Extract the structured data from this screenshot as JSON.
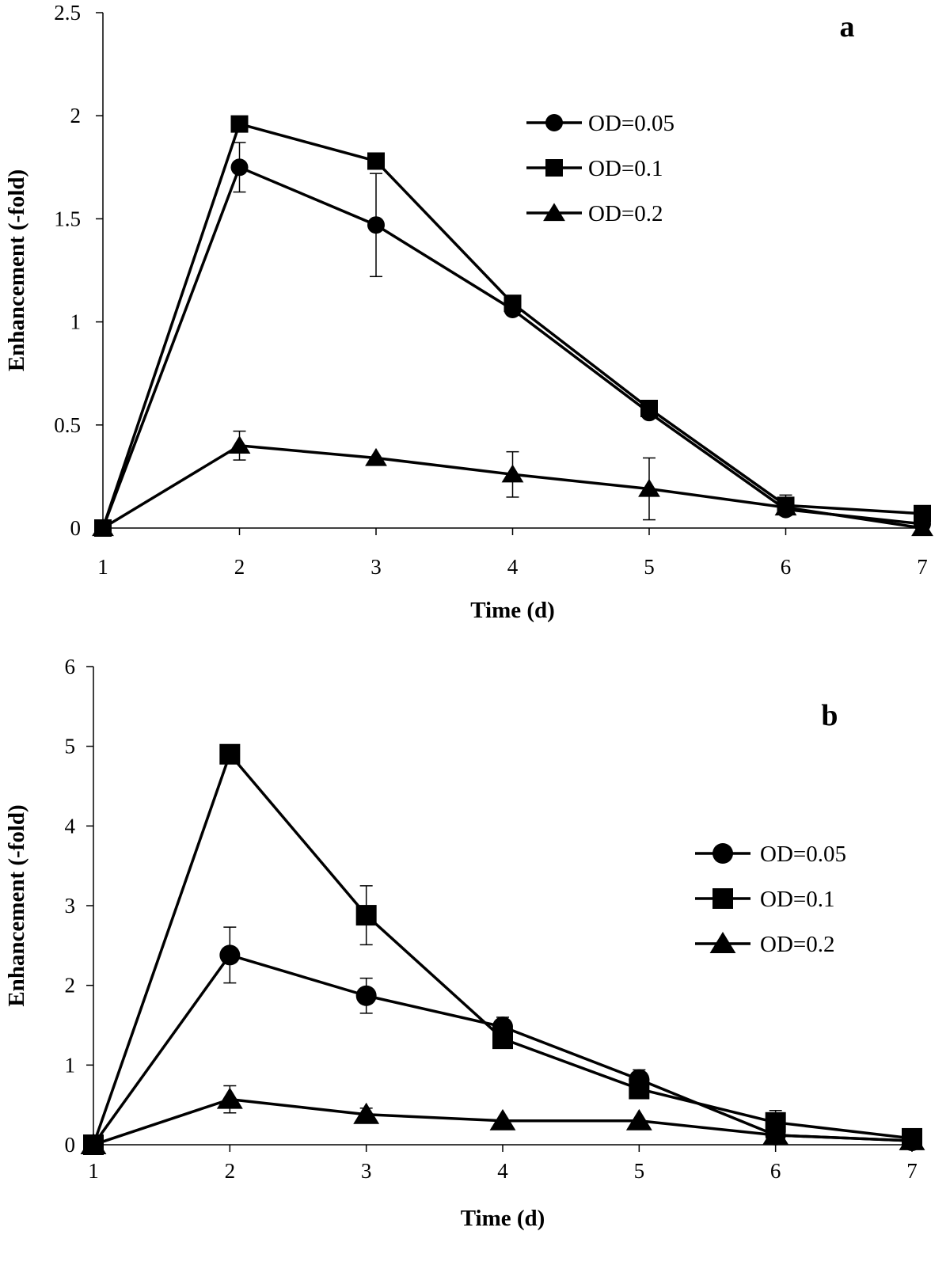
{
  "chart_data": [
    {
      "type": "line",
      "panel_label": "a",
      "xlabel": "Time (d)",
      "ylabel": "Enhancement (-fold)",
      "xlim": [
        1,
        7
      ],
      "ylim": [
        0,
        2.5
      ],
      "x_ticks": [
        1,
        2,
        3,
        4,
        5,
        6,
        7
      ],
      "y_ticks": [
        0,
        0.5,
        1,
        1.5,
        2,
        2.5
      ],
      "y_tick_labels": [
        "0",
        "0.5",
        "1",
        "1.5",
        "2",
        "2.5"
      ],
      "grid": false,
      "legend_position": "top-right",
      "x": [
        1,
        2,
        3,
        4,
        5,
        6,
        7
      ],
      "series": [
        {
          "name": "OD=0.05",
          "marker": "circle",
          "values": [
            0,
            1.75,
            1.47,
            1.06,
            0.56,
            0.09,
            0.02
          ],
          "errors": [
            0,
            0.12,
            0.25,
            0,
            0,
            0,
            0
          ]
        },
        {
          "name": "OD=0.1",
          "marker": "square",
          "values": [
            0,
            1.96,
            1.78,
            1.09,
            0.58,
            0.11,
            0.07
          ],
          "errors": [
            0,
            0,
            0,
            0,
            0,
            0.05,
            0
          ]
        },
        {
          "name": "OD=0.2",
          "marker": "triangle",
          "values": [
            0,
            0.4,
            0.34,
            0.26,
            0.19,
            0.1,
            0.0
          ],
          "errors": [
            0,
            0.07,
            0,
            0.11,
            0.15,
            0,
            0
          ]
        }
      ]
    },
    {
      "type": "line",
      "panel_label": "b",
      "xlabel": "Time (d)",
      "ylabel": "Enhancement (-fold)",
      "xlim": [
        1,
        7
      ],
      "ylim": [
        0,
        6
      ],
      "x_ticks": [
        1,
        2,
        3,
        4,
        5,
        6,
        7
      ],
      "y_ticks": [
        0,
        1,
        2,
        3,
        4,
        5,
        6
      ],
      "y_tick_labels": [
        "0",
        "1",
        "2",
        "3",
        "4",
        "5",
        "6"
      ],
      "grid": false,
      "legend_position": "right",
      "x": [
        1,
        2,
        3,
        4,
        5,
        6,
        7
      ],
      "series": [
        {
          "name": "OD=0.05",
          "marker": "circle",
          "values": [
            0,
            2.38,
            1.87,
            1.48,
            0.82,
            0.12,
            0.05
          ],
          "errors": [
            0,
            0.35,
            0.22,
            0.12,
            0.12,
            0,
            0
          ]
        },
        {
          "name": "OD=0.1",
          "marker": "square",
          "values": [
            0,
            4.9,
            2.88,
            1.33,
            0.7,
            0.28,
            0.08
          ],
          "errors": [
            0,
            0.1,
            0.37,
            0,
            0,
            0.15,
            0
          ]
        },
        {
          "name": "OD=0.2",
          "marker": "triangle",
          "values": [
            0,
            0.57,
            0.38,
            0.3,
            0.3,
            0.12,
            0.05
          ],
          "errors": [
            0,
            0.17,
            0.08,
            0,
            0,
            0,
            0
          ]
        }
      ]
    }
  ]
}
